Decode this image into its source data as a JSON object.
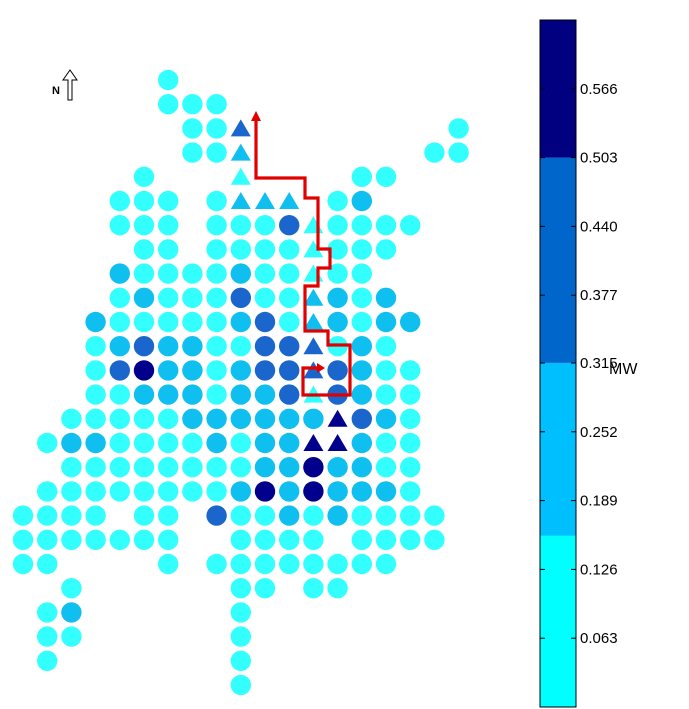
{
  "north_arrow": {
    "label": "N"
  },
  "colorbar": {
    "unit": "MW",
    "ticks": [
      "0.063",
      "0.126",
      "0.189",
      "0.252",
      "0.315",
      "0.377",
      "0.440",
      "0.503",
      "0.566"
    ],
    "bands": [
      {
        "min": 0.0,
        "max": 0.157,
        "color": "#00ffff"
      },
      {
        "min": 0.157,
        "max": 0.315,
        "color": "#00bfff"
      },
      {
        "min": 0.315,
        "max": 0.503,
        "color": "#0066cc"
      },
      {
        "min": 0.503,
        "max": 0.629,
        "color": "#000080"
      }
    ]
  },
  "legend_colors": {
    "c1": "#33ffff",
    "c2": "#0ebff0",
    "c3": "#1a66cc",
    "c4": "#00008c"
  },
  "path_color": "#e00000",
  "grid": {
    "c1_rows": [
      {
        "r": 0,
        "cols": [
          6
        ]
      },
      {
        "r": 1,
        "cols": [
          6,
          7,
          8
        ]
      },
      {
        "r": 2,
        "cols": [
          7,
          8,
          18
        ]
      },
      {
        "r": 3,
        "cols": [
          7,
          8,
          17,
          18
        ]
      },
      {
        "r": 4,
        "cols": [
          5,
          14,
          15
        ]
      },
      {
        "r": 5,
        "cols": [
          4,
          5,
          6,
          8,
          9,
          10,
          13
        ]
      },
      {
        "r": 6,
        "cols": [
          4,
          5,
          6,
          8,
          9,
          10,
          13,
          14,
          15,
          16
        ]
      },
      {
        "r": 7,
        "cols": [
          5,
          6,
          8,
          9,
          10,
          11,
          13,
          14,
          15
        ]
      },
      {
        "r": 8,
        "cols": [
          5,
          6,
          7,
          8,
          10,
          11,
          13,
          14
        ]
      },
      {
        "r": 9,
        "cols": [
          4,
          6,
          7,
          8,
          10,
          11,
          14
        ]
      },
      {
        "r": 10,
        "cols": [
          4,
          5,
          6,
          7,
          8,
          10,
          11,
          14
        ]
      },
      {
        "r": 11,
        "cols": [
          3,
          8,
          9,
          10,
          11,
          13,
          15
        ]
      },
      {
        "r": 12,
        "cols": [
          3,
          4,
          8,
          13,
          15,
          16
        ]
      },
      {
        "r": 13,
        "cols": [
          3,
          4,
          8,
          15,
          16
        ]
      },
      {
        "r": 14,
        "cols": [
          2,
          3,
          4,
          5,
          6,
          16
        ]
      },
      {
        "r": 15,
        "cols": [
          1,
          4,
          5,
          6,
          7,
          9,
          15,
          16
        ]
      },
      {
        "r": 16,
        "cols": [
          2,
          3,
          4,
          5,
          6,
          7,
          8,
          9,
          15,
          16
        ]
      },
      {
        "r": 17,
        "cols": [
          1,
          2,
          3,
          4,
          5,
          6,
          7,
          8,
          10,
          16
        ]
      },
      {
        "r": 18,
        "cols": [
          0,
          1,
          2,
          3,
          5,
          6,
          9,
          10,
          12,
          14,
          15,
          16,
          17
        ]
      },
      {
        "r": 19,
        "cols": [
          0,
          1,
          2,
          3,
          4,
          5,
          6,
          9,
          10,
          11,
          12,
          14,
          15,
          16,
          17
        ]
      },
      {
        "r": 20,
        "cols": [
          0,
          1,
          6,
          8,
          9,
          10,
          11,
          12,
          13,
          14,
          15
        ]
      },
      {
        "r": 21,
        "cols": [
          2,
          9,
          10,
          12,
          13
        ]
      },
      {
        "r": 22,
        "cols": [
          1,
          9
        ]
      },
      {
        "r": 23,
        "cols": [
          1,
          2,
          9
        ]
      },
      {
        "r": 24,
        "cols": [
          1,
          9
        ]
      },
      {
        "r": 25,
        "cols": [
          9
        ]
      }
    ],
    "c2_rows": [
      {
        "r": 4,
        "cols": []
      },
      {
        "r": 5,
        "cols": [
          14
        ]
      },
      {
        "r": 6,
        "cols": []
      },
      {
        "r": 7,
        "cols": []
      },
      {
        "r": 8,
        "cols": [
          4,
          9,
          12
        ]
      },
      {
        "r": 9,
        "cols": [
          5,
          9,
          12,
          13,
          15
        ]
      },
      {
        "r": 10,
        "cols": [
          3,
          9,
          13,
          15,
          16
        ]
      },
      {
        "r": 11,
        "cols": [
          4,
          5,
          6,
          7,
          12,
          14
        ]
      },
      {
        "r": 12,
        "cols": [
          5,
          6,
          7,
          9,
          10,
          12,
          14
        ]
      },
      {
        "r": 13,
        "cols": [
          5,
          6,
          7,
          9,
          10,
          11,
          14
        ]
      },
      {
        "r": 14,
        "cols": [
          7,
          8,
          9,
          10,
          11,
          12,
          15
        ]
      },
      {
        "r": 15,
        "cols": [
          2,
          3,
          8,
          10,
          11,
          12,
          13,
          14
        ]
      },
      {
        "r": 16,
        "cols": [
          10,
          11,
          12,
          13,
          14
        ]
      },
      {
        "r": 17,
        "cols": [
          9,
          11,
          12,
          13,
          14,
          15
        ]
      },
      {
        "r": 18,
        "cols": [
          11,
          13
        ]
      },
      {
        "r": 19,
        "cols": []
      },
      {
        "r": 20,
        "cols": []
      },
      {
        "r": 22,
        "cols": [
          2
        ]
      },
      {
        "r": 23,
        "cols": []
      }
    ],
    "c3_rows": [
      {
        "r": 6,
        "cols": [
          11
        ]
      },
      {
        "r": 9,
        "cols": [
          9
        ]
      },
      {
        "r": 10,
        "cols": [
          10,
          12
        ]
      },
      {
        "r": 11,
        "cols": [
          5,
          10,
          11
        ]
      },
      {
        "r": 12,
        "cols": [
          4,
          10,
          11,
          13
        ]
      },
      {
        "r": 13,
        "cols": [
          11,
          13
        ]
      },
      {
        "r": 14,
        "cols": [
          13,
          14
        ]
      },
      {
        "r": 15,
        "cols": [
          13
        ]
      },
      {
        "r": 17,
        "cols": []
      },
      {
        "r": 18,
        "cols": [
          8
        ]
      },
      {
        "r": 21,
        "cols": []
      },
      {
        "r": 22,
        "cols": []
      },
      {
        "r": 23,
        "cols": []
      }
    ],
    "c4_rows": [
      {
        "r": 11,
        "cols": [
          12
        ]
      },
      {
        "r": 12,
        "cols": [
          5
        ]
      },
      {
        "r": 15,
        "cols": [
          12,
          13
        ]
      },
      {
        "r": 16,
        "cols": [
          12
        ]
      },
      {
        "r": 17,
        "cols": [
          10,
          12
        ]
      },
      {
        "r": 18,
        "cols": []
      }
    ],
    "triangles": [
      {
        "r": 2,
        "c": 9,
        "t": 3
      },
      {
        "r": 3,
        "c": 9,
        "t": 2
      },
      {
        "r": 4,
        "c": 9,
        "t": 1
      },
      {
        "r": 5,
        "c": 9,
        "t": 2
      },
      {
        "r": 5,
        "c": 10,
        "t": 2
      },
      {
        "r": 5,
        "c": 11,
        "t": 2
      },
      {
        "r": 6,
        "c": 12,
        "t": 1
      },
      {
        "r": 7,
        "c": 12,
        "t": 1
      },
      {
        "r": 8,
        "c": 12,
        "t": 1
      },
      {
        "r": 9,
        "c": 12,
        "t": 2
      },
      {
        "r": 10,
        "c": 12,
        "t": 2
      },
      {
        "r": 11,
        "c": 12,
        "t": 3
      },
      {
        "r": 12,
        "c": 12,
        "t": 3
      },
      {
        "r": 13,
        "c": 12,
        "t": 1
      },
      {
        "r": 14,
        "c": 13,
        "t": 4
      },
      {
        "r": 15,
        "c": 12,
        "t": 4
      },
      {
        "r": 15,
        "c": 13,
        "t": 4
      }
    ]
  }
}
